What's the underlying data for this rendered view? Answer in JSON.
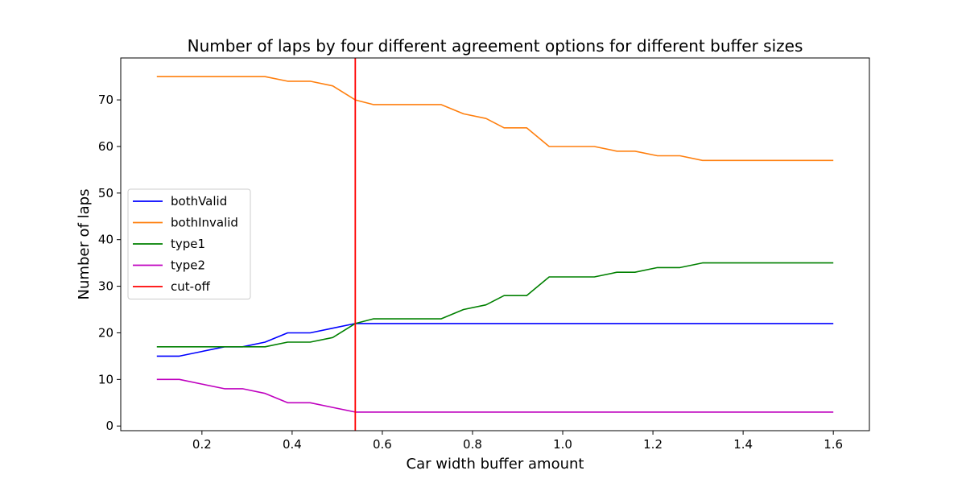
{
  "chart_data": {
    "type": "line",
    "title": "Number of laps by four different agreement options for different buffer sizes",
    "xlabel": "Car width buffer amount",
    "ylabel": "Number of laps",
    "xlim": [
      0.02,
      1.68
    ],
    "ylim": [
      -1,
      79
    ],
    "xticks": [
      0.2,
      0.4,
      0.6,
      0.8,
      1.0,
      1.2,
      1.4,
      1.6
    ],
    "xtick_labels": [
      "0.2",
      "0.4",
      "0.6",
      "0.8",
      "1.0",
      "1.2",
      "1.4",
      "1.6"
    ],
    "yticks": [
      0,
      10,
      20,
      30,
      40,
      50,
      60,
      70
    ],
    "ytick_labels": [
      "0",
      "10",
      "20",
      "30",
      "40",
      "50",
      "60",
      "70"
    ],
    "grid": false,
    "legend_position": "center-left",
    "x": [
      0.1,
      0.15,
      0.2,
      0.25,
      0.29,
      0.34,
      0.39,
      0.44,
      0.49,
      0.54,
      0.58,
      0.63,
      0.68,
      0.73,
      0.78,
      0.83,
      0.87,
      0.92,
      0.97,
      1.02,
      1.07,
      1.12,
      1.16,
      1.21,
      1.26,
      1.31,
      1.36,
      1.41,
      1.45,
      1.5,
      1.55,
      1.6
    ],
    "series": [
      {
        "name": "bothValid",
        "color": "#0000ff",
        "values": [
          15,
          15,
          16,
          17,
          17,
          18,
          20,
          20,
          21,
          22,
          22,
          22,
          22,
          22,
          22,
          22,
          22,
          22,
          22,
          22,
          22,
          22,
          22,
          22,
          22,
          22,
          22,
          22,
          22,
          22,
          22,
          22
        ]
      },
      {
        "name": "bothInvalid",
        "color": "#ff7f0e",
        "values": [
          75,
          75,
          75,
          75,
          75,
          75,
          74,
          74,
          73,
          70,
          69,
          69,
          69,
          69,
          67,
          66,
          64,
          64,
          60,
          60,
          60,
          59,
          59,
          58,
          58,
          57,
          57,
          57,
          57,
          57,
          57,
          57
        ]
      },
      {
        "name": "type1",
        "color": "#008000",
        "values": [
          17,
          17,
          17,
          17,
          17,
          17,
          18,
          18,
          19,
          22,
          23,
          23,
          23,
          23,
          25,
          26,
          28,
          28,
          32,
          32,
          32,
          33,
          33,
          34,
          34,
          35,
          35,
          35,
          35,
          35,
          35,
          35
        ]
      },
      {
        "name": "type2",
        "color": "#bf00bf",
        "values": [
          10,
          10,
          9,
          8,
          8,
          7,
          5,
          5,
          4,
          3,
          3,
          3,
          3,
          3,
          3,
          3,
          3,
          3,
          3,
          3,
          3,
          3,
          3,
          3,
          3,
          3,
          3,
          3,
          3,
          3,
          3,
          3
        ]
      }
    ],
    "vline": {
      "name": "cut-off",
      "color": "#ff0000",
      "x": 0.54
    }
  }
}
